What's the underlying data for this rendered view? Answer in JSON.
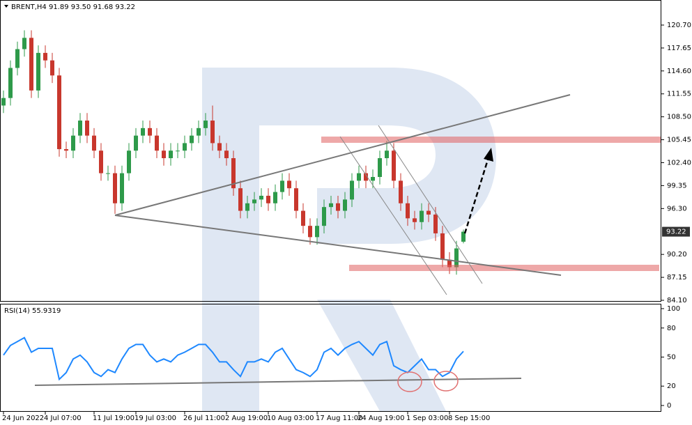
{
  "chart_data": [
    {
      "type": "candlestick",
      "title": "BRENT,H4  91.89 93.50 91.68 93.22",
      "categories": [
        "24 Jun 2022",
        null,
        null,
        null,
        null,
        null,
        "4 Jul 07:00",
        null,
        null,
        null,
        null,
        null,
        null,
        "11 Jul 19:00",
        null,
        null,
        null,
        null,
        null,
        "19 Jul 03:00",
        null,
        null,
        null,
        null,
        null,
        null,
        "26 Jul 11:00",
        null,
        null,
        null,
        null,
        null,
        "2 Aug 19:00",
        null,
        null,
        null,
        null,
        null,
        "10 Aug 03:00",
        null,
        null,
        null,
        null,
        null,
        null,
        "17 Aug 11:00",
        null,
        null,
        null,
        null,
        null,
        "24 Aug 19:00",
        null,
        null,
        null,
        null,
        null,
        null,
        "1 Sep 03:00",
        null,
        null,
        null,
        null,
        null,
        "8 Sep 15:00",
        null,
        null
      ],
      "open": [
        110,
        111,
        115,
        117.5,
        119,
        112,
        117,
        116,
        114,
        104.2,
        104,
        106,
        108,
        106,
        104,
        101,
        101,
        97,
        101,
        104,
        106,
        107,
        106,
        104,
        103,
        104,
        104,
        105,
        106,
        107,
        108,
        105,
        104,
        103,
        99,
        96,
        97,
        97.5,
        98,
        97,
        98.5,
        100,
        99,
        96,
        94,
        92.5,
        94,
        96.5,
        97,
        96,
        97.5,
        100,
        101,
        100,
        100.5,
        103,
        104,
        100,
        97,
        95,
        94.5,
        96,
        95.5,
        93,
        89.5,
        88.5,
        91.89
      ],
      "high": [
        112,
        116,
        118.5,
        120,
        120,
        118,
        118,
        117,
        115,
        105.2,
        107,
        109,
        109,
        107,
        105,
        102,
        102,
        102,
        105,
        107,
        108,
        108,
        107,
        105,
        105,
        105,
        106,
        107,
        108,
        109,
        110,
        106,
        105,
        104,
        100,
        98,
        98.5,
        99,
        99,
        99.5,
        101,
        101,
        100,
        97,
        95,
        95,
        97.5,
        98,
        98,
        98.5,
        101,
        102,
        102,
        101.5,
        104,
        105.3,
        105,
        101,
        98,
        96,
        97,
        97,
        96.5,
        94,
        90.5,
        92,
        93.5
      ],
      "low": [
        109,
        110,
        114,
        116.5,
        111,
        111,
        115,
        113,
        103.2,
        103,
        103,
        105,
        105,
        103,
        100,
        100,
        95.6,
        96,
        100,
        103,
        105,
        105,
        103,
        102,
        102,
        103,
        103,
        104,
        105,
        106,
        104,
        103,
        102,
        98,
        95,
        95,
        96,
        96.5,
        96,
        96,
        97.5,
        98,
        95,
        93,
        91.5,
        91.5,
        93,
        95.5,
        95,
        95,
        96.5,
        99,
        99,
        99,
        99.5,
        102,
        99,
        96,
        94,
        93.5,
        93.5,
        94.5,
        92,
        88.5,
        87.6,
        87.5,
        91.68
      ],
      "close": [
        111,
        115,
        117.5,
        119,
        112,
        117,
        116,
        114,
        104.2,
        104,
        106,
        108,
        106,
        104,
        101,
        101,
        97,
        101,
        104,
        106,
        107,
        106,
        104,
        103,
        104,
        104,
        105,
        106,
        107,
        108,
        105,
        104,
        103,
        99,
        96,
        97,
        97.5,
        98,
        97,
        98.5,
        100,
        99,
        96,
        94,
        92.5,
        94,
        96.5,
        97,
        96,
        97.5,
        100,
        101,
        100,
        100.5,
        103,
        104,
        100,
        97,
        95,
        94.5,
        96,
        95.5,
        93,
        89.5,
        88.5,
        91,
        93.22
      ],
      "up_color": "#2e9a4a",
      "down_color": "#c8372d",
      "ylim": [
        84.1,
        123.57
      ],
      "yticks": [
        {
          "value": 120.7,
          "label": "120.70"
        },
        117.65,
        {
          "value": 114.6,
          "label": "114.60"
        },
        111.55,
        {
          "value": 108.5,
          "label": "108.50"
        },
        105.45,
        {
          "value": 102.4,
          "label": "102.40"
        },
        99.35,
        {
          "value": 96.3,
          "label": "96.30"
        },
        {
          "value": 90.2,
          "label": "90.20"
        },
        87.15,
        {
          "value": 84.1,
          "label": "84.10"
        }
      ]
    },
    {
      "type": "line",
      "title": "RSI(14) 55.9319",
      "color": "#1e88ff",
      "values": [
        52,
        62,
        66,
        70,
        55,
        59,
        59,
        59,
        27,
        34,
        48,
        52,
        45,
        34,
        30,
        37,
        34,
        48,
        59,
        63,
        63,
        52,
        45,
        48,
        45,
        52,
        55,
        59,
        63,
        63,
        55,
        45,
        45,
        37,
        30,
        45,
        45,
        48,
        45,
        55,
        59,
        48,
        37,
        34,
        30,
        37,
        55,
        59,
        52,
        59,
        63,
        66,
        59,
        52,
        63,
        66,
        41,
        37,
        34,
        41,
        48,
        37,
        37,
        30,
        34,
        48,
        55.9319
      ],
      "ylim": [
        -5.76,
        104.3
      ],
      "yticks": [
        100,
        80,
        50,
        20,
        0
      ]
    }
  ]
}
